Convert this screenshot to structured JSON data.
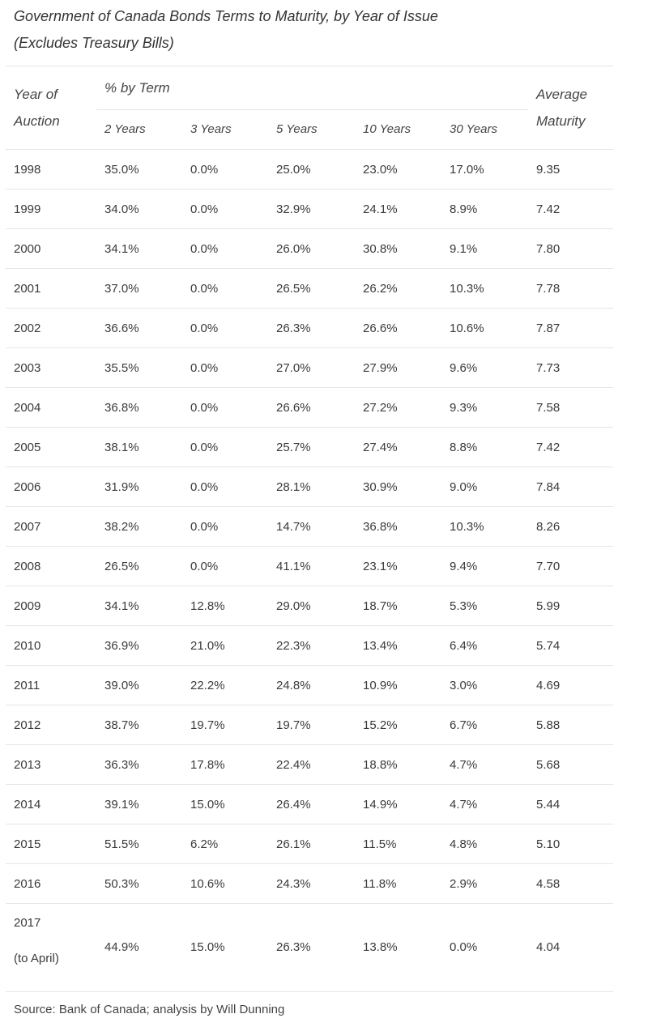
{
  "title_line1": "Government of Canada Bonds Terms to Maturity, by Year of Issue",
  "title_line2": "(Excludes Treasury Bills)",
  "header": {
    "year_line1": "Year of",
    "year_line2": "Auction",
    "pct_by_term": "% by Term",
    "terms": [
      "2 Years",
      "3 Years",
      "5 Years",
      "10 Years",
      "30 Years"
    ],
    "avg_line1": "Average",
    "avg_line2": "Maturity"
  },
  "rows": [
    {
      "year": "1998",
      "v": [
        "35.0%",
        "0.0%",
        "25.0%",
        "23.0%",
        "17.0%"
      ],
      "avg": "9.35"
    },
    {
      "year": "1999",
      "v": [
        "34.0%",
        "0.0%",
        "32.9%",
        "24.1%",
        "8.9%"
      ],
      "avg": "7.42"
    },
    {
      "year": "2000",
      "v": [
        "34.1%",
        "0.0%",
        "26.0%",
        "30.8%",
        "9.1%"
      ],
      "avg": "7.80"
    },
    {
      "year": "2001",
      "v": [
        "37.0%",
        "0.0%",
        "26.5%",
        "26.2%",
        "10.3%"
      ],
      "avg": "7.78"
    },
    {
      "year": "2002",
      "v": [
        "36.6%",
        "0.0%",
        "26.3%",
        "26.6%",
        "10.6%"
      ],
      "avg": "7.87"
    },
    {
      "year": "2003",
      "v": [
        "35.5%",
        "0.0%",
        "27.0%",
        "27.9%",
        "9.6%"
      ],
      "avg": "7.73"
    },
    {
      "year": "2004",
      "v": [
        "36.8%",
        "0.0%",
        "26.6%",
        "27.2%",
        "9.3%"
      ],
      "avg": "7.58"
    },
    {
      "year": "2005",
      "v": [
        "38.1%",
        "0.0%",
        "25.7%",
        "27.4%",
        "8.8%"
      ],
      "avg": "7.42"
    },
    {
      "year": "2006",
      "v": [
        "31.9%",
        "0.0%",
        "28.1%",
        "30.9%",
        "9.0%"
      ],
      "avg": "7.84"
    },
    {
      "year": "2007",
      "v": [
        "38.2%",
        "0.0%",
        "14.7%",
        "36.8%",
        "10.3%"
      ],
      "avg": "8.26"
    },
    {
      "year": "2008",
      "v": [
        "26.5%",
        "0.0%",
        "41.1%",
        "23.1%",
        "9.4%"
      ],
      "avg": "7.70"
    },
    {
      "year": "2009",
      "v": [
        "34.1%",
        "12.8%",
        "29.0%",
        "18.7%",
        "5.3%"
      ],
      "avg": "5.99"
    },
    {
      "year": "2010",
      "v": [
        "36.9%",
        "21.0%",
        "22.3%",
        "13.4%",
        "6.4%"
      ],
      "avg": "5.74"
    },
    {
      "year": "2011",
      "v": [
        "39.0%",
        "22.2%",
        "24.8%",
        "10.9%",
        "3.0%"
      ],
      "avg": "4.69"
    },
    {
      "year": "2012",
      "v": [
        "38.7%",
        "19.7%",
        "19.7%",
        "15.2%",
        "6.7%"
      ],
      "avg": "5.88"
    },
    {
      "year": "2013",
      "v": [
        "36.3%",
        "17.8%",
        "22.4%",
        "18.8%",
        "4.7%"
      ],
      "avg": "5.68"
    },
    {
      "year": "2014",
      "v": [
        "39.1%",
        "15.0%",
        "26.4%",
        "14.9%",
        "4.7%"
      ],
      "avg": "5.44"
    },
    {
      "year": "2015",
      "v": [
        "51.5%",
        "6.2%",
        "26.1%",
        "11.5%",
        "4.8%"
      ],
      "avg": "5.10"
    },
    {
      "year": "2016",
      "v": [
        "50.3%",
        "10.6%",
        "24.3%",
        "11.8%",
        "2.9%"
      ],
      "avg": "4.58"
    }
  ],
  "last_row": {
    "year_line1": "2017",
    "year_line2": "(to April)",
    "v": [
      "44.9%",
      "15.0%",
      "26.3%",
      "13.8%",
      "0.0%"
    ],
    "avg": "4.04"
  },
  "source": "Source: Bank of Canada; analysis by Will Dunning"
}
